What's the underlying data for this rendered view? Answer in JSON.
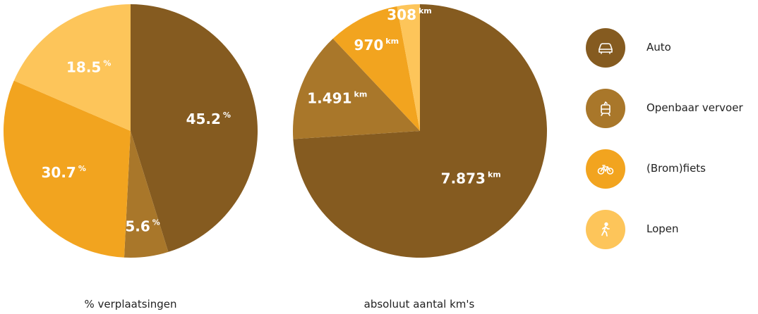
{
  "colors": {
    "auto": "#855b20",
    "ov": "#a9772a",
    "fiets": "#f2a41f",
    "lopen": "#fdc55a"
  },
  "chart_data": [
    {
      "type": "pie",
      "caption": "% verplaatsingen",
      "slices": [
        {
          "category": "Auto",
          "value": 45.2,
          "label": "45.2",
          "unit": "%"
        },
        {
          "category": "Openbaar vervoer",
          "value": 5.6,
          "label": "5.6",
          "unit": "%"
        },
        {
          "category": "(Brom)fiets",
          "value": 30.7,
          "label": "30.7",
          "unit": "%"
        },
        {
          "category": "Lopen",
          "value": 18.5,
          "label": "18.5",
          "unit": "%"
        }
      ]
    },
    {
      "type": "pie",
      "caption": "absoluut aantal km's",
      "slices": [
        {
          "category": "Auto",
          "value": 7873,
          "label": "7.873",
          "unit": "km"
        },
        {
          "category": "Openbaar vervoer",
          "value": 1491,
          "label": "1.491",
          "unit": "km"
        },
        {
          "category": "(Brom)fiets",
          "value": 970,
          "label": "970",
          "unit": "km"
        },
        {
          "category": "Lopen",
          "value": 308,
          "label": "308",
          "unit": "km"
        }
      ]
    }
  ],
  "legend": [
    {
      "label": "Auto",
      "icon": "car-icon"
    },
    {
      "label": "Openbaar vervoer",
      "icon": "tram-icon"
    },
    {
      "label": "(Brom)fiets",
      "icon": "bicycle-icon"
    },
    {
      "label": "Lopen",
      "icon": "walking-person-icon"
    }
  ]
}
